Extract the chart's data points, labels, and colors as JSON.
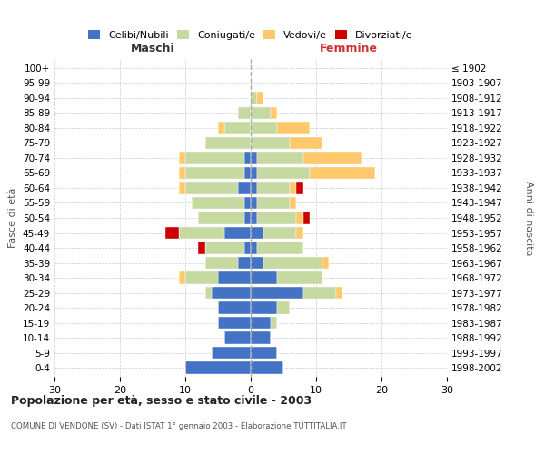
{
  "age_groups": [
    "0-4",
    "5-9",
    "10-14",
    "15-19",
    "20-24",
    "25-29",
    "30-34",
    "35-39",
    "40-44",
    "45-49",
    "50-54",
    "55-59",
    "60-64",
    "65-69",
    "70-74",
    "75-79",
    "80-84",
    "85-89",
    "90-94",
    "95-99",
    "100+"
  ],
  "birth_years": [
    "1998-2002",
    "1993-1997",
    "1988-1992",
    "1983-1987",
    "1978-1982",
    "1973-1977",
    "1968-1972",
    "1963-1967",
    "1958-1962",
    "1953-1957",
    "1948-1952",
    "1943-1947",
    "1938-1942",
    "1933-1937",
    "1928-1932",
    "1923-1927",
    "1918-1922",
    "1913-1917",
    "1908-1912",
    "1903-1907",
    "≤ 1902"
  ],
  "male": {
    "celibe": [
      10,
      6,
      4,
      5,
      5,
      6,
      5,
      2,
      1,
      4,
      1,
      1,
      2,
      1,
      1,
      0,
      0,
      0,
      0,
      0,
      0
    ],
    "coniugato": [
      0,
      0,
      0,
      0,
      0,
      1,
      5,
      5,
      6,
      7,
      7,
      8,
      8,
      9,
      9,
      7,
      4,
      2,
      0,
      0,
      0
    ],
    "vedovo": [
      0,
      0,
      0,
      0,
      0,
      0,
      1,
      0,
      0,
      0,
      0,
      0,
      1,
      1,
      1,
      0,
      1,
      0,
      0,
      0,
      0
    ],
    "divorziato": [
      0,
      0,
      0,
      0,
      0,
      0,
      0,
      0,
      1,
      2,
      0,
      0,
      0,
      0,
      0,
      0,
      0,
      0,
      0,
      0,
      0
    ]
  },
  "female": {
    "nubile": [
      5,
      4,
      3,
      3,
      4,
      8,
      4,
      2,
      1,
      2,
      1,
      1,
      1,
      1,
      1,
      0,
      0,
      0,
      0,
      0,
      0
    ],
    "coniugata": [
      0,
      0,
      0,
      1,
      2,
      5,
      7,
      9,
      7,
      5,
      6,
      5,
      5,
      8,
      7,
      6,
      4,
      3,
      1,
      0,
      0
    ],
    "vedova": [
      0,
      0,
      0,
      0,
      0,
      1,
      0,
      1,
      0,
      1,
      1,
      1,
      1,
      10,
      9,
      5,
      5,
      1,
      1,
      0,
      0
    ],
    "divorziata": [
      0,
      0,
      0,
      0,
      0,
      0,
      0,
      0,
      0,
      0,
      1,
      0,
      1,
      0,
      0,
      0,
      0,
      0,
      0,
      0,
      0
    ]
  },
  "colors": {
    "celibe_nubile": "#4472c4",
    "coniugato_a": "#c5d9a0",
    "vedovo_a": "#ffc86b",
    "divorziato_a": "#cc0000"
  },
  "title": "Popolazione per età, sesso e stato civile - 2003",
  "subtitle": "COMUNE DI VENDONE (SV) - Dati ISTAT 1° gennaio 2003 - Elaborazione TUTTITALIA.IT",
  "xlabel_left": "Maschi",
  "xlabel_right": "Femmine",
  "ylabel_left": "Fasce di età",
  "ylabel_right": "Anni di nascita",
  "xlim": 30,
  "background_color": "#ffffff",
  "grid_color": "#cccccc"
}
